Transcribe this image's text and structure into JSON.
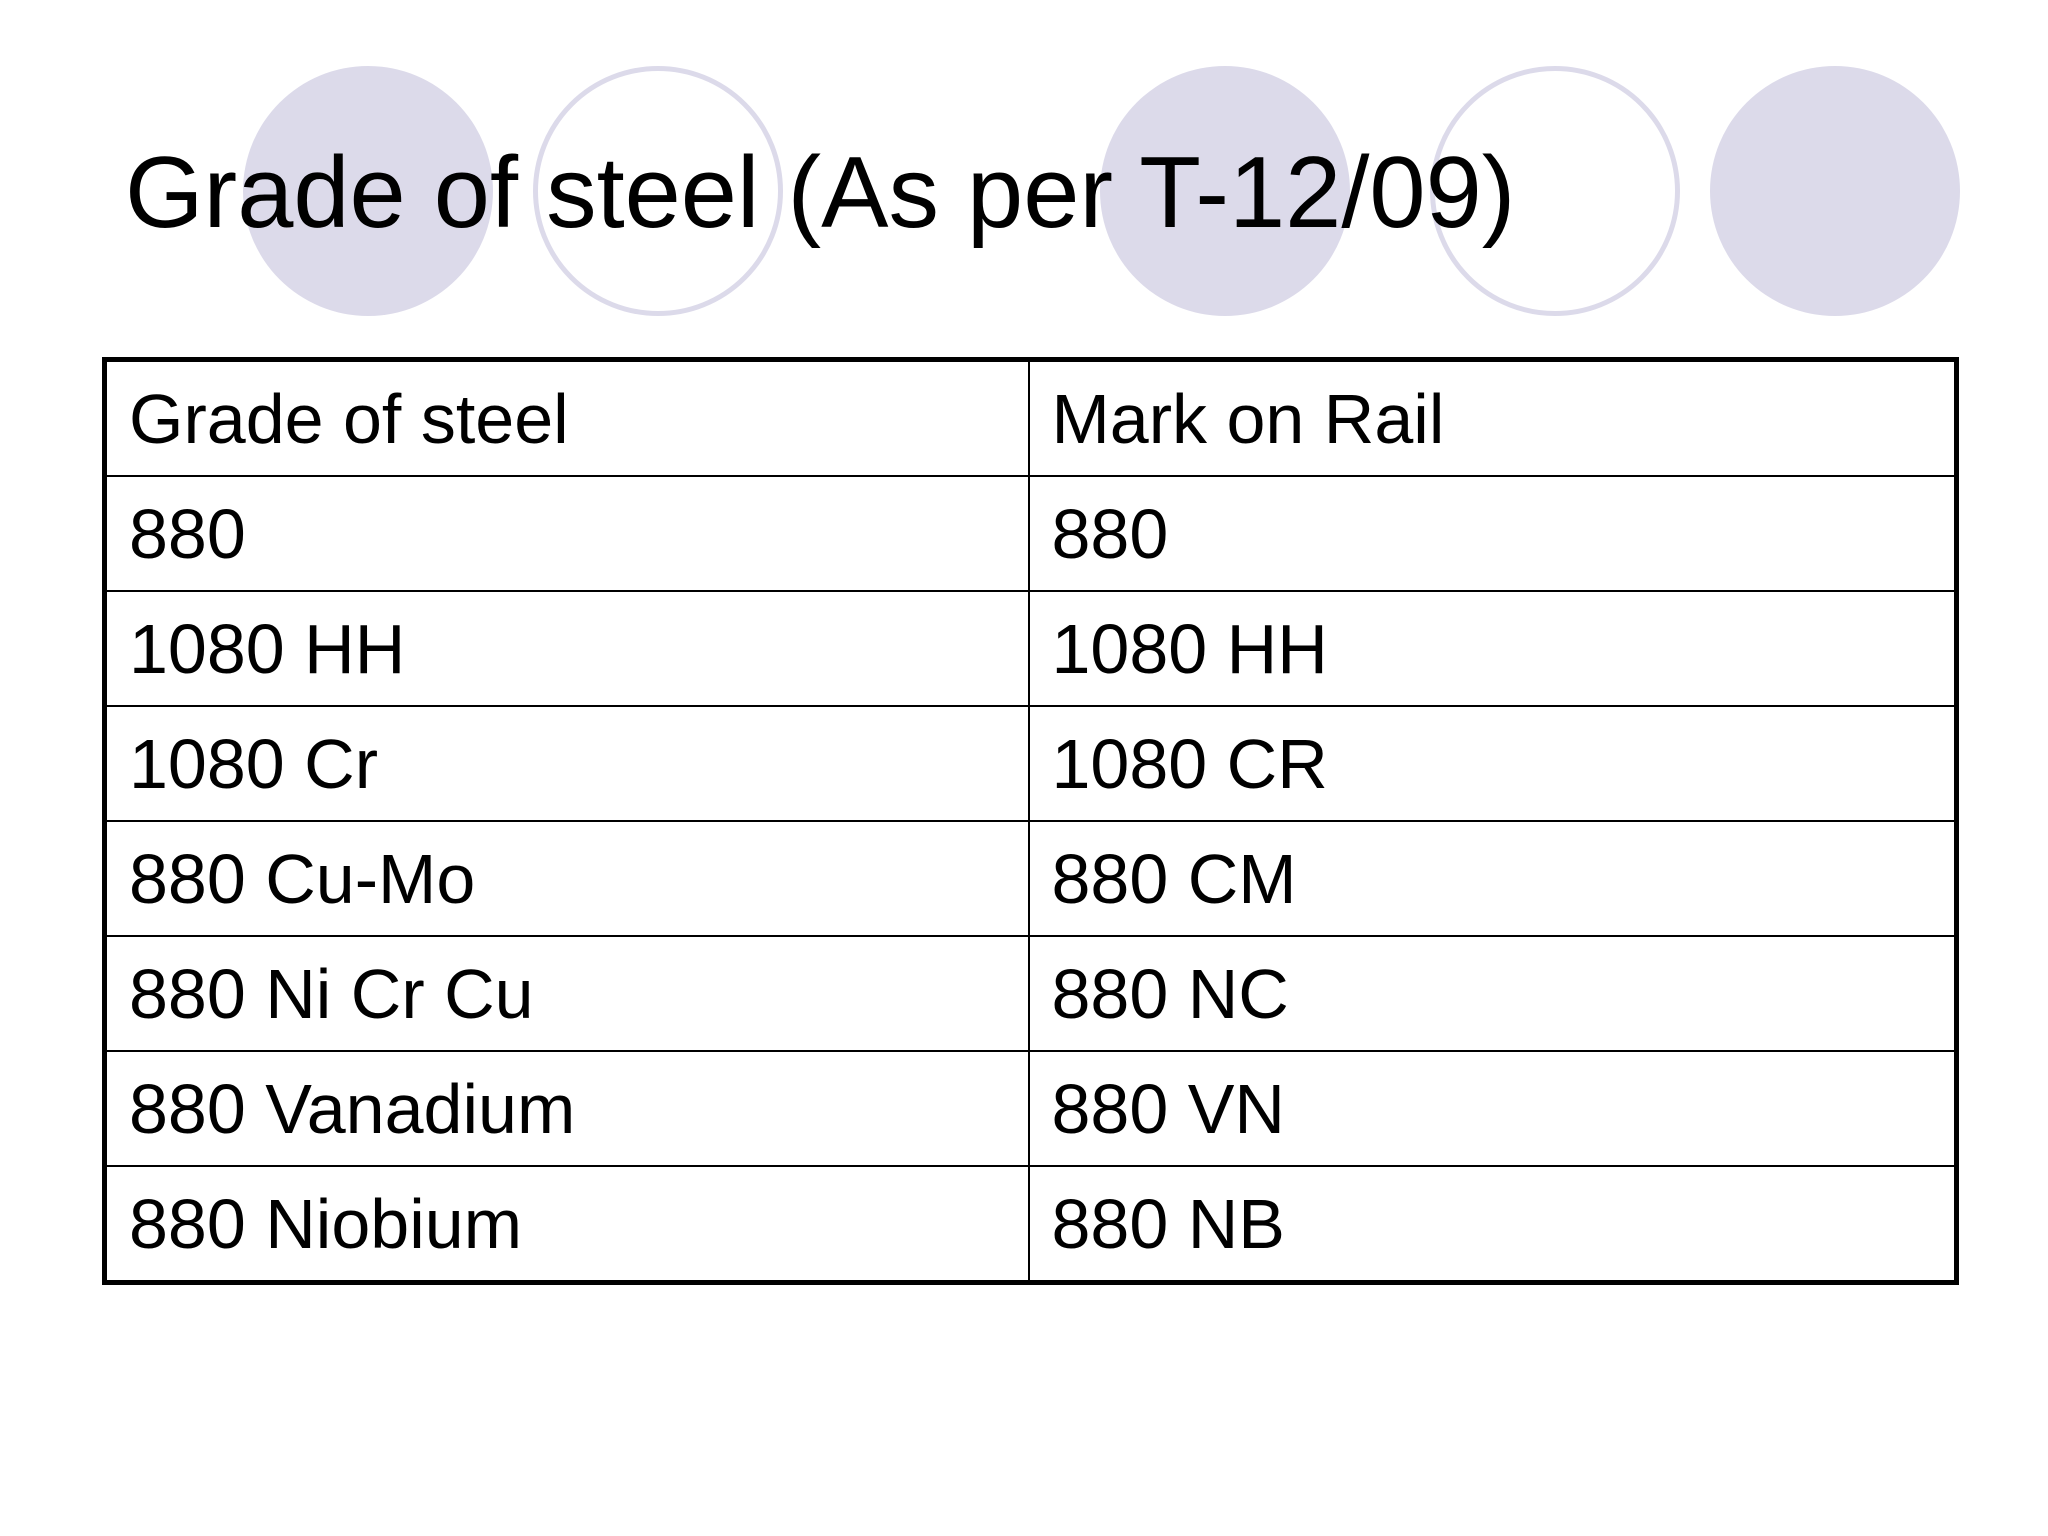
{
  "slide": {
    "title": "Grade of steel (As per T-12/09)",
    "decoration_color": "#dcdaea",
    "table": {
      "headers": [
        "Grade of steel",
        "Mark on Rail"
      ],
      "rows": [
        [
          "880",
          "880"
        ],
        [
          "1080 HH",
          "1080 HH"
        ],
        [
          "1080 Cr",
          "1080 CR"
        ],
        [
          "880 Cu-Mo",
          "880 CM"
        ],
        [
          "880 Ni Cr Cu",
          "880 NC"
        ],
        [
          "880 Vanadium",
          "880 VN"
        ],
        [
          "880 Niobium",
          "880 NB"
        ]
      ]
    }
  }
}
